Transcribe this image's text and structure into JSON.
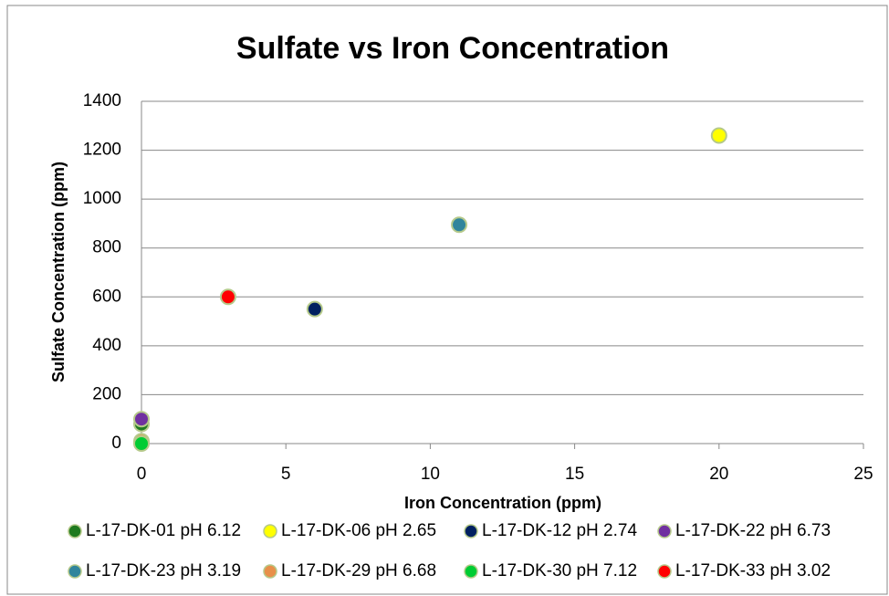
{
  "chart_data": {
    "type": "scatter",
    "title": "Sulfate vs Iron Concentration",
    "x_label": "Iron Concentration (ppm)",
    "y_label": "Sulfate Concentration  (ppm)",
    "xlim": [
      0,
      25
    ],
    "xticks": [
      0,
      5,
      10,
      15,
      20,
      25
    ],
    "ylim": [
      0,
      1400
    ],
    "yticks": [
      0,
      200,
      400,
      600,
      800,
      1000,
      1200,
      1400
    ],
    "grid": true,
    "legend": "bottom",
    "series": [
      {
        "name": "L-17-DK-01 pH 6.12",
        "color": "#1f7a1f",
        "x": [
          0
        ],
        "values": [
          80
        ]
      },
      {
        "name": "L-17-DK-06 pH 2.65",
        "color": "#ffff00",
        "x": [
          20
        ],
        "values": [
          1260
        ]
      },
      {
        "name": "L-17-DK-12 pH 2.74",
        "color": "#002060",
        "x": [
          6
        ],
        "values": [
          550
        ]
      },
      {
        "name": "L-17-DK-22 pH 6.73",
        "color": "#7030a0",
        "x": [
          0
        ],
        "values": [
          100
        ]
      },
      {
        "name": "L-17-DK-23 pH 3.19",
        "color": "#31859c",
        "x": [
          11
        ],
        "values": [
          895
        ]
      },
      {
        "name": "L-17-DK-29 pH 6.68",
        "color": "#e8904a",
        "x": [
          0
        ],
        "values": [
          10
        ]
      },
      {
        "name": "L-17-DK-30 pH 7.12",
        "color": "#00cc33",
        "x": [
          0
        ],
        "values": [
          0
        ]
      },
      {
        "name": "L-17-DK-33 pH 3.02",
        "color": "#ff0000",
        "x": [
          3
        ],
        "values": [
          600
        ]
      }
    ]
  }
}
